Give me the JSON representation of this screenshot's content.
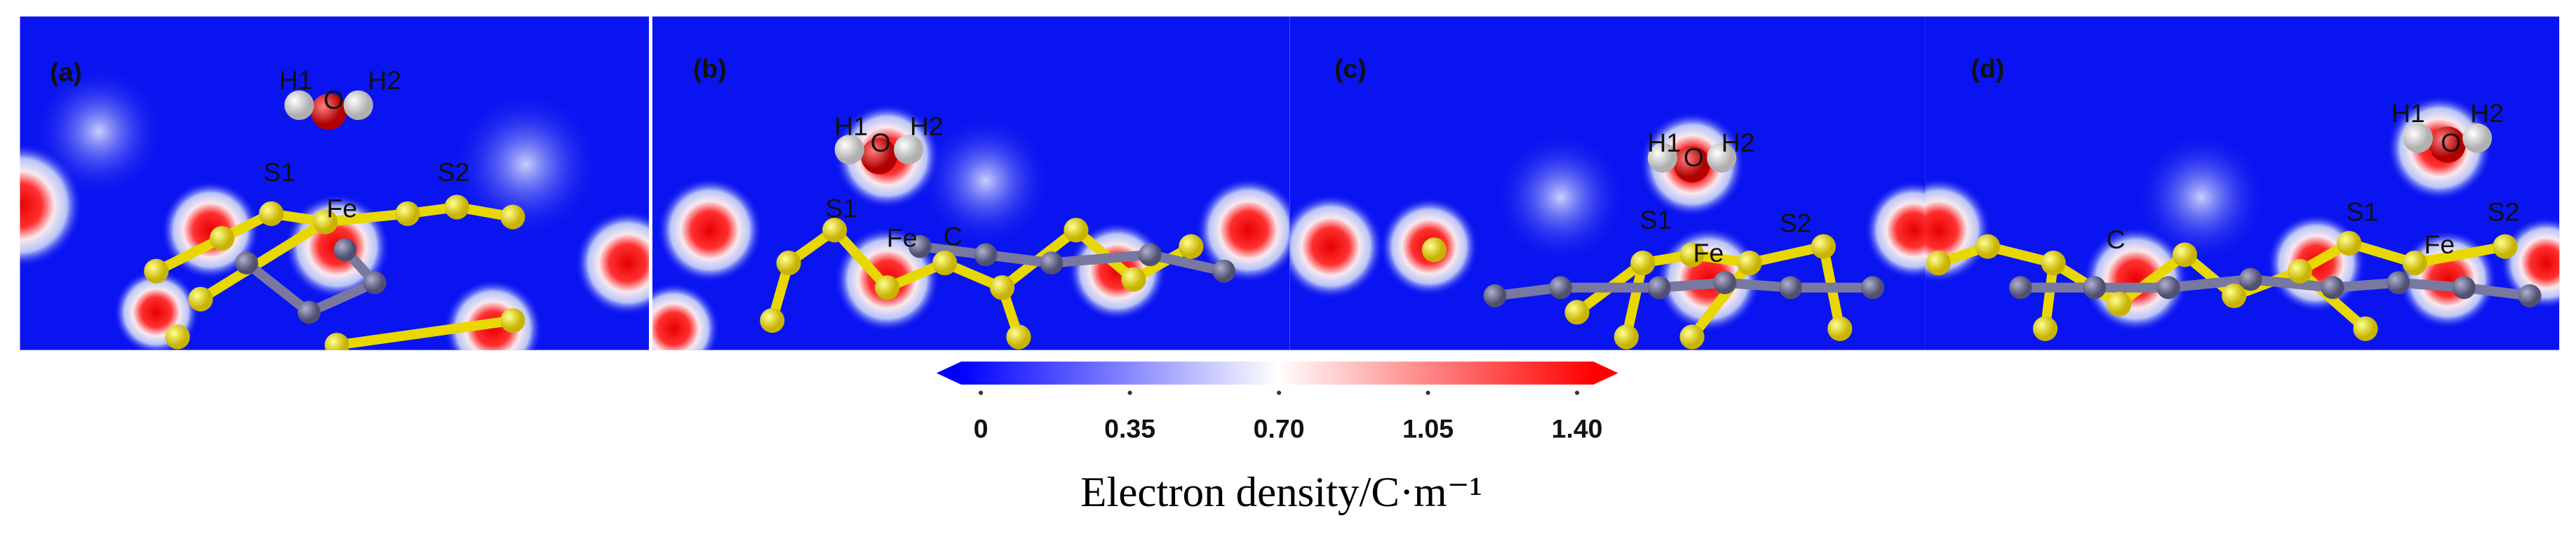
{
  "panels": [
    {
      "label": "(a)",
      "atoms": [
        "H1",
        "O",
        "H2",
        "S1",
        "Fe",
        "S2"
      ]
    },
    {
      "label": "(b)",
      "atoms": [
        "H1",
        "O",
        "H2",
        "S1",
        "Fe",
        "C"
      ]
    },
    {
      "label": "(c)",
      "atoms": [
        "H1",
        "O",
        "H2",
        "S1",
        "Fe",
        "S2"
      ]
    },
    {
      "label": "(d)",
      "atoms": [
        "H1",
        "O",
        "H2",
        "S1",
        "Fe",
        "S2",
        "C"
      ]
    }
  ],
  "colorbar": {
    "title": "Electron density/C·m⁻¹",
    "range": [
      0,
      1.4
    ],
    "ticks": [
      0,
      0.35,
      {
        "value": 0.7,
        "label": "0.70"
      },
      1.05,
      {
        "value": 1.4,
        "label": "1.40"
      }
    ],
    "colors": [
      "#0000ff",
      "#ffffff",
      "#ff0000"
    ]
  }
}
